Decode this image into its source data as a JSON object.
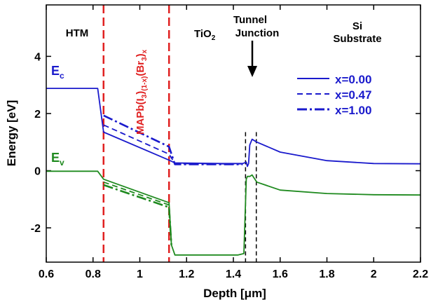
{
  "chart_data": {
    "type": "line",
    "title": "",
    "xlabel": "Depth [μm]",
    "ylabel": "Energy [eV]",
    "xlim": [
      0.6,
      2.2
    ],
    "ylim": [
      -3.2,
      5.8
    ],
    "x_ticks": [
      0.6,
      0.8,
      1.0,
      1.2,
      1.4,
      1.6,
      1.8,
      2.0,
      2.2
    ],
    "x_tick_labels": [
      "0.6",
      "0.8",
      "1",
      "1.2",
      "1.4",
      "1.6",
      "1.8",
      "2",
      "2.2"
    ],
    "y_ticks": [
      -2,
      0,
      2,
      4
    ],
    "y_tick_labels": [
      "-2",
      "0",
      "2",
      "4"
    ],
    "grid": false,
    "legend_position": "right",
    "regions": {
      "htm": "HTM",
      "perovskite_main": "MAPb(I",
      "perovskite_sub1": "3",
      "perovskite_mid1": ")",
      "perovskite_sub2": "(1-x)",
      "perovskite_mid2": "(Br",
      "perovskite_sub3": "3",
      "perovskite_mid3": ")",
      "perovskite_sub4": "x",
      "tio2_main": "TiO",
      "tio2_sub": "2",
      "tunnel_line1": "Tunnel",
      "tunnel_line2": "Junction",
      "si_line1": "Si",
      "si_line2": "Substrate"
    },
    "band_labels": {
      "ec_main": "E",
      "ec_sub": "c",
      "ev_main": "E",
      "ev_sub": "v"
    },
    "boundaries_red": [
      0.845,
      1.125
    ],
    "boundaries_black": [
      1.452,
      1.498
    ],
    "colors": {
      "ec": "#1a1acc",
      "ev": "#1f8a1f",
      "red": "#e02020",
      "black": "#000000"
    },
    "legend": [
      {
        "label": "x=0.00",
        "dash": "solid"
      },
      {
        "label": "x=0.47",
        "dash": "dashed"
      },
      {
        "label": "x=1.00",
        "dash": "dashdot"
      }
    ],
    "series": [
      {
        "name": "x=0.00",
        "band": "Ec",
        "x": [
          0.6,
          0.82,
          0.845,
          1.125,
          1.15,
          1.35,
          1.44,
          1.455,
          1.46,
          1.465,
          1.47,
          1.48,
          1.5,
          1.6,
          1.8,
          2.0,
          2.2
        ],
        "y": [
          2.88,
          2.88,
          1.35,
          0.37,
          0.27,
          0.25,
          0.25,
          0.3,
          0.15,
          0.25,
          0.9,
          1.1,
          1.0,
          0.65,
          0.35,
          0.25,
          0.24
        ]
      },
      {
        "name": "x=0.47",
        "band": "Ec",
        "x": [
          0.845,
          1.125,
          1.15,
          1.35,
          1.44
        ],
        "y": [
          1.6,
          0.58,
          0.25,
          0.24,
          0.24
        ]
      },
      {
        "name": "x=1.00",
        "band": "Ec",
        "x": [
          0.845,
          1.125,
          1.15,
          1.35,
          1.44
        ],
        "y": [
          1.93,
          0.84,
          0.22,
          0.22,
          0.22
        ]
      },
      {
        "name": "x=0.00",
        "band": "Ev",
        "x": [
          0.6,
          0.82,
          0.845,
          1.125,
          1.135,
          1.15,
          1.3,
          1.42,
          1.445,
          1.455,
          1.46,
          1.47,
          1.48,
          1.5,
          1.6,
          1.8,
          2.0,
          2.2
        ],
        "y": [
          -0.02,
          -0.02,
          -0.3,
          -1.12,
          -2.6,
          -2.95,
          -2.95,
          -2.95,
          -2.9,
          -0.3,
          -0.2,
          -0.2,
          -0.15,
          -0.4,
          -0.68,
          -0.8,
          -0.84,
          -0.85
        ]
      },
      {
        "name": "x=0.47",
        "band": "Ev",
        "x": [
          0.845,
          1.125,
          1.135
        ],
        "y": [
          -0.4,
          -1.2,
          -2.6
        ]
      },
      {
        "name": "x=1.00",
        "band": "Ev",
        "x": [
          0.845,
          1.125,
          1.135
        ],
        "y": [
          -0.5,
          -1.28,
          -2.6
        ]
      }
    ]
  }
}
